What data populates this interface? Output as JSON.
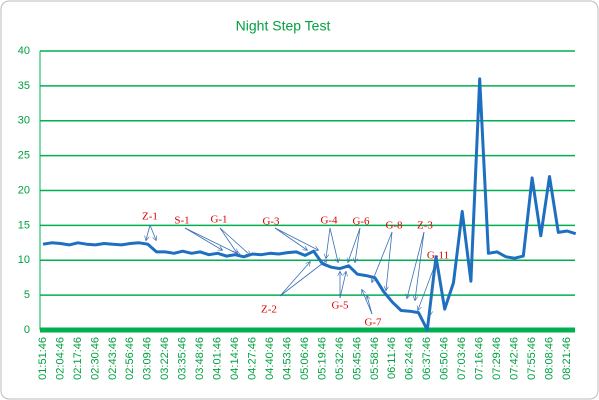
{
  "chart_data": {
    "type": "line",
    "title": "Night Step Test",
    "categories": [
      "01:51:46",
      null,
      "02:04:46",
      null,
      "02:17:46",
      null,
      "02:30:46",
      null,
      "02:43:46",
      null,
      "02:56:46",
      null,
      "03:09:46",
      null,
      "03:22:46",
      null,
      "03:35:46",
      null,
      "03:48:46",
      null,
      "04:01:46",
      null,
      "04:14:46",
      null,
      "04:27:46",
      null,
      "04:40:46",
      null,
      "04:53:46",
      null,
      "05:06:46",
      null,
      "05:19:46",
      null,
      "05:32:46",
      null,
      "05:45:46",
      null,
      "05:58:46",
      null,
      "06:11:46",
      null,
      "06:24:46",
      null,
      "06:37:46",
      null,
      "06:50:46",
      null,
      "07:03:46",
      null,
      "07:16:46",
      null,
      "07:29:46",
      null,
      "07:42:46",
      null,
      "07:55:46",
      null,
      "08:08:46",
      null,
      "08:21:46",
      null
    ],
    "series": [
      {
        "color": "#1f6fc0",
        "values": [
          12.3,
          12.5,
          12.4,
          12.2,
          12.5,
          12.3,
          12.2,
          12.4,
          12.3,
          12.2,
          12.4,
          12.5,
          12.3,
          11.2,
          11.2,
          11.0,
          11.3,
          11.0,
          11.2,
          10.8,
          11.0,
          10.6,
          10.8,
          10.5,
          10.9,
          10.8,
          11.0,
          10.9,
          11.1,
          11.2,
          10.7,
          11.3,
          9.5,
          9.0,
          8.8,
          9.2,
          8.0,
          7.8,
          7.5,
          5.5,
          4.0,
          2.8,
          2.7,
          2.5,
          0,
          10.5,
          3.0,
          6.8,
          17.0,
          7.0,
          36.0,
          11.0,
          11.2,
          10.5,
          10.3,
          10.6,
          21.8,
          13.5,
          22.0,
          14.0,
          14.2,
          13.8
        ]
      }
    ],
    "ylim": [
      0,
      40
    ],
    "yticks": [
      0,
      5,
      10,
      15,
      20,
      25,
      30,
      35,
      40
    ],
    "grid": true,
    "grid_color": "#00b050",
    "annotations": [
      "Z-1",
      "S-1",
      "G-1",
      "G-3",
      "G-4",
      "G-6",
      "G-8",
      "Z-3",
      "G-11",
      "Z-2",
      "G-5",
      "G-7"
    ]
  }
}
